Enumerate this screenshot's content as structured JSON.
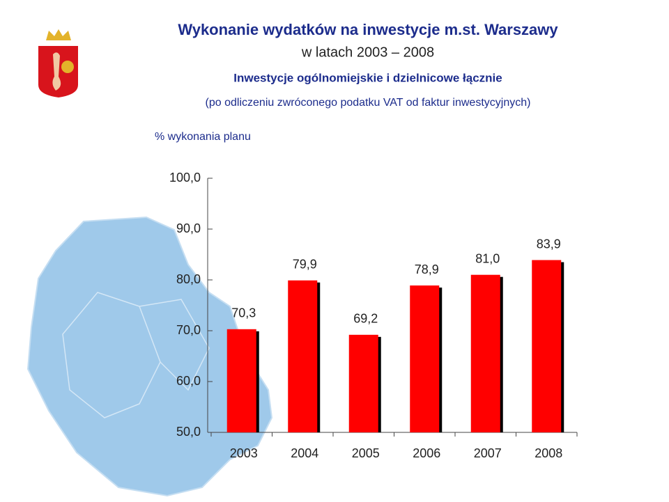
{
  "chart_data": {
    "type": "bar",
    "title": "Wykonanie wydatków na inwestycje m.st. Warszawy",
    "title_line2": "w latach 2003 – 2008",
    "subtitle": "Inwestycje ogólnomiejskie i dzielnicowe łącznie",
    "note": "(po odliczeniu zwróconego podatku VAT od faktur inwestycyjnych)",
    "ylabel": "% wykonania planu",
    "categories": [
      "2003",
      "2004",
      "2005",
      "2006",
      "2007",
      "2008"
    ],
    "values": [
      70.3,
      79.9,
      69.2,
      78.9,
      81.0,
      83.9
    ],
    "value_labels": [
      "70,3",
      "79,9",
      "69,2",
      "78,9",
      "81,0",
      "83,9"
    ],
    "color": "#ff0000",
    "ylim": [
      50,
      100
    ],
    "yticks": [
      {
        "value": 50,
        "label": "50,0"
      },
      {
        "value": 60,
        "label": "60,0"
      },
      {
        "value": 70,
        "label": "70,0"
      },
      {
        "value": 80,
        "label": "80,0"
      },
      {
        "value": 90,
        "label": "90,0"
      },
      {
        "value": 100,
        "label": "100,0"
      }
    ]
  }
}
